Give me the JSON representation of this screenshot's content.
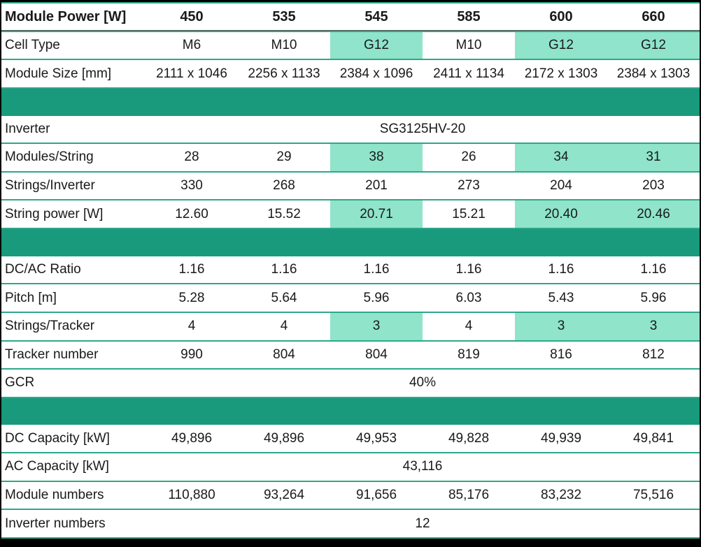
{
  "colors": {
    "band": "#199A7C",
    "highlight": "#8FE4CA",
    "hairline": "#2EA78B",
    "border": "#000000",
    "text": "#1a1a1a"
  },
  "table": {
    "columns": [
      "450",
      "535",
      "545",
      "585",
      "600",
      "660"
    ],
    "rows": [
      {
        "kind": "header",
        "label": "Module Power [W]",
        "values": [
          "450",
          "535",
          "545",
          "585",
          "600",
          "660"
        ],
        "highlight": []
      },
      {
        "kind": "data",
        "label": "Cell Type",
        "values": [
          "M6",
          "M10",
          "G12",
          "M10",
          "G12",
          "G12"
        ],
        "highlight": [
          2,
          4,
          5
        ]
      },
      {
        "kind": "data",
        "label": "Module Size [mm]",
        "values": [
          "2111 x 1046",
          "2256 x 1133",
          "2384 x 1096",
          "2411 x 1134",
          "2172 x 1303",
          "2384 x 1303"
        ],
        "highlight": []
      },
      {
        "kind": "separator"
      },
      {
        "kind": "merged",
        "label": "Inverter",
        "value": "SG3125HV-20"
      },
      {
        "kind": "data",
        "label": "Modules/String",
        "values": [
          "28",
          "29",
          "38",
          "26",
          "34",
          "31"
        ],
        "highlight": [
          2,
          4,
          5
        ]
      },
      {
        "kind": "data",
        "label": "Strings/Inverter",
        "values": [
          "330",
          "268",
          "201",
          "273",
          "204",
          "203"
        ],
        "highlight": []
      },
      {
        "kind": "data",
        "label": "String power [W]",
        "values": [
          "12.60",
          "15.52",
          "20.71",
          "15.21",
          "20.40",
          "20.46"
        ],
        "highlight": [
          2,
          4,
          5
        ]
      },
      {
        "kind": "separator"
      },
      {
        "kind": "data",
        "label": "DC/AC Ratio",
        "values": [
          "1.16",
          "1.16",
          "1.16",
          "1.16",
          "1.16",
          "1.16"
        ],
        "highlight": []
      },
      {
        "kind": "data",
        "label": "Pitch [m]",
        "values": [
          "5.28",
          "5.64",
          "5.96",
          "6.03",
          "5.43",
          "5.96"
        ],
        "highlight": []
      },
      {
        "kind": "data",
        "label": "Strings/Tracker",
        "values": [
          "4",
          "4",
          "3",
          "4",
          "3",
          "3"
        ],
        "highlight": [
          2,
          4,
          5
        ]
      },
      {
        "kind": "data",
        "label": "Tracker number",
        "values": [
          "990",
          "804",
          "804",
          "819",
          "816",
          "812"
        ],
        "highlight": []
      },
      {
        "kind": "merged",
        "label": "GCR",
        "value": "40%"
      },
      {
        "kind": "separator"
      },
      {
        "kind": "data",
        "label": "DC Capacity [kW]",
        "values": [
          "49,896",
          "49,896",
          "49,953",
          "49,828",
          "49,939",
          "49,841"
        ],
        "highlight": []
      },
      {
        "kind": "merged",
        "label": "AC Capacity [kW]",
        "value": "43,116"
      },
      {
        "kind": "data",
        "label": "Module numbers",
        "values": [
          "110,880",
          "93,264",
          "91,656",
          "85,176",
          "83,232",
          "75,516"
        ],
        "highlight": []
      },
      {
        "kind": "merged",
        "label": "Inverter numbers",
        "value": "12"
      }
    ]
  }
}
